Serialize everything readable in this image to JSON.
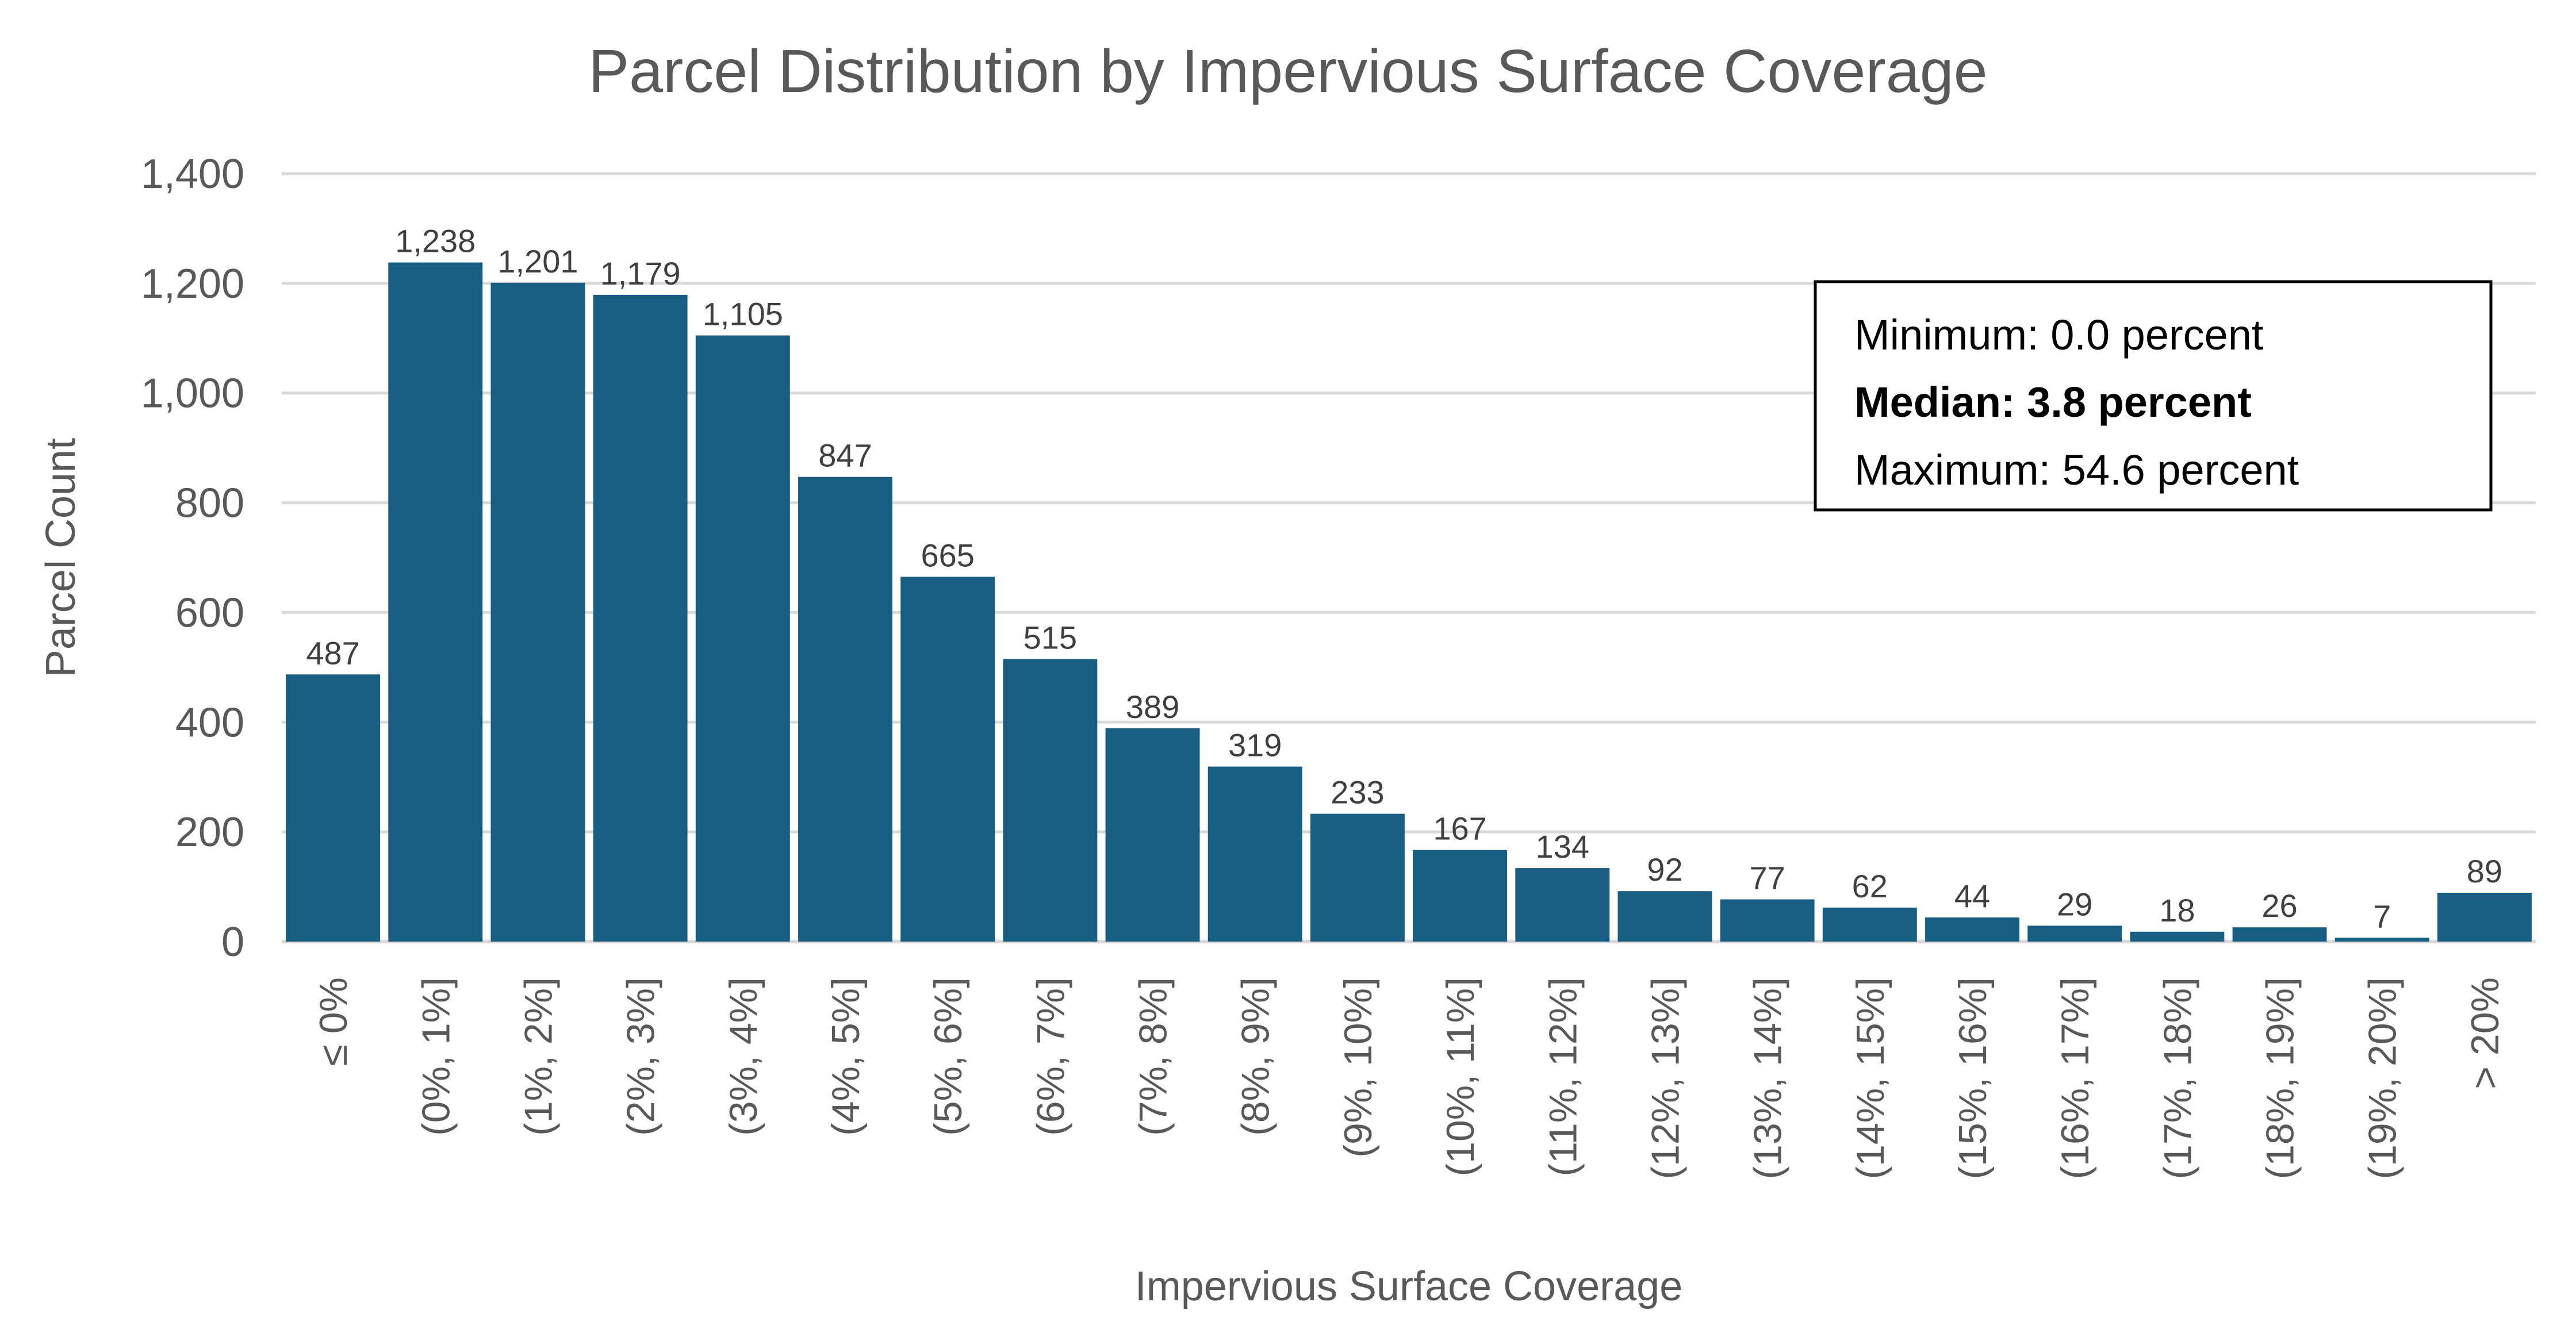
{
  "chart_data": {
    "type": "bar",
    "title": "Parcel Distribution by Impervious Surface Coverage",
    "xlabel": "Impervious Surface Coverage",
    "ylabel": "Parcel Count",
    "ylim": [
      0,
      1400
    ],
    "yticks": [
      0,
      200,
      400,
      600,
      800,
      1000,
      1200,
      1400
    ],
    "ytick_labels": [
      "0",
      "200",
      "400",
      "600",
      "800",
      "1,000",
      "1,200",
      "1,400"
    ],
    "grid": true,
    "bar_color": "#175e82",
    "categories": [
      "≤ 0%",
      "(0%, 1%]",
      "(1%, 2%]",
      "(2%, 3%]",
      "(3%, 4%]",
      "(4%, 5%]",
      "(5%, 6%]",
      "(6%, 7%]",
      "(7%, 8%]",
      "(8%, 9%]",
      "(9%, 10%]",
      "(10%, 11%]",
      "(11%, 12%]",
      "(12%, 13%]",
      "(13%, 14%]",
      "(14%, 15%]",
      "(15%, 16%]",
      "(16%, 17%]",
      "(17%, 18%]",
      "(18%, 19%]",
      "(19%, 20%]",
      "> 20%"
    ],
    "values": [
      487,
      1238,
      1201,
      1179,
      1105,
      847,
      665,
      515,
      389,
      319,
      233,
      167,
      134,
      92,
      77,
      62,
      44,
      29,
      18,
      26,
      7,
      89
    ],
    "data_labels": [
      "487",
      "1,238",
      "1,201",
      "1,179",
      "1,105",
      "847",
      "665",
      "515",
      "389",
      "319",
      "233",
      "167",
      "134",
      "92",
      "77",
      "62",
      "44",
      "29",
      "18",
      "26",
      "7",
      "89"
    ],
    "annotation_box": {
      "lines": [
        {
          "text": "Minimum: 0.0 percent",
          "bold": false
        },
        {
          "text": "Median: 3.8 percent",
          "bold": true
        },
        {
          "text": "Maximum: 54.6 percent",
          "bold": false
        }
      ],
      "placement": "top-right"
    }
  }
}
